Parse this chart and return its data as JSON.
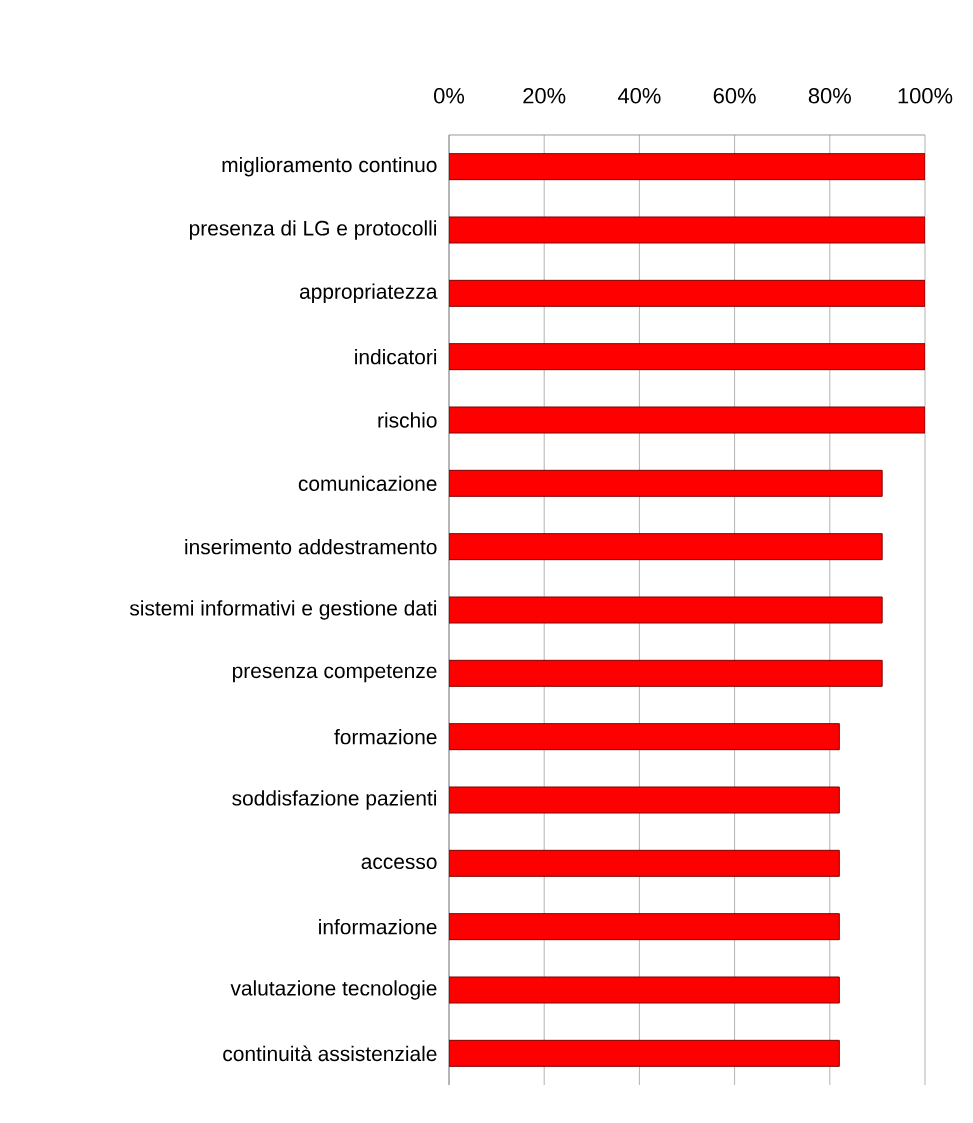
{
  "chart_data": {
    "type": "bar",
    "orientation": "horizontal",
    "categories": [
      "miglioramento continuo",
      "presenza di LG e protocolli",
      "appropriatezza",
      "indicatori",
      "rischio",
      "comunicazione",
      "inserimento addestramento",
      "sistemi informativi e gestione dati",
      "presenza competenze",
      "formazione",
      "soddisfazione pazienti",
      "accesso",
      "informazione",
      "valutazione tecnologie",
      "continuità assistenziale"
    ],
    "values": [
      100,
      100,
      100,
      100,
      100,
      91,
      91,
      91,
      91,
      82,
      82,
      82,
      82,
      82,
      82
    ],
    "color": "#ff0000",
    "xlim": [
      0,
      100
    ],
    "xticks": [
      {
        "value": 0,
        "label": "0%"
      },
      {
        "value": 20,
        "label": "20%"
      },
      {
        "value": 40,
        "label": "40%"
      },
      {
        "value": 60,
        "label": "60%"
      },
      {
        "value": 80,
        "label": "80%"
      },
      {
        "value": 100,
        "label": "100%"
      }
    ],
    "grid": "x"
  }
}
